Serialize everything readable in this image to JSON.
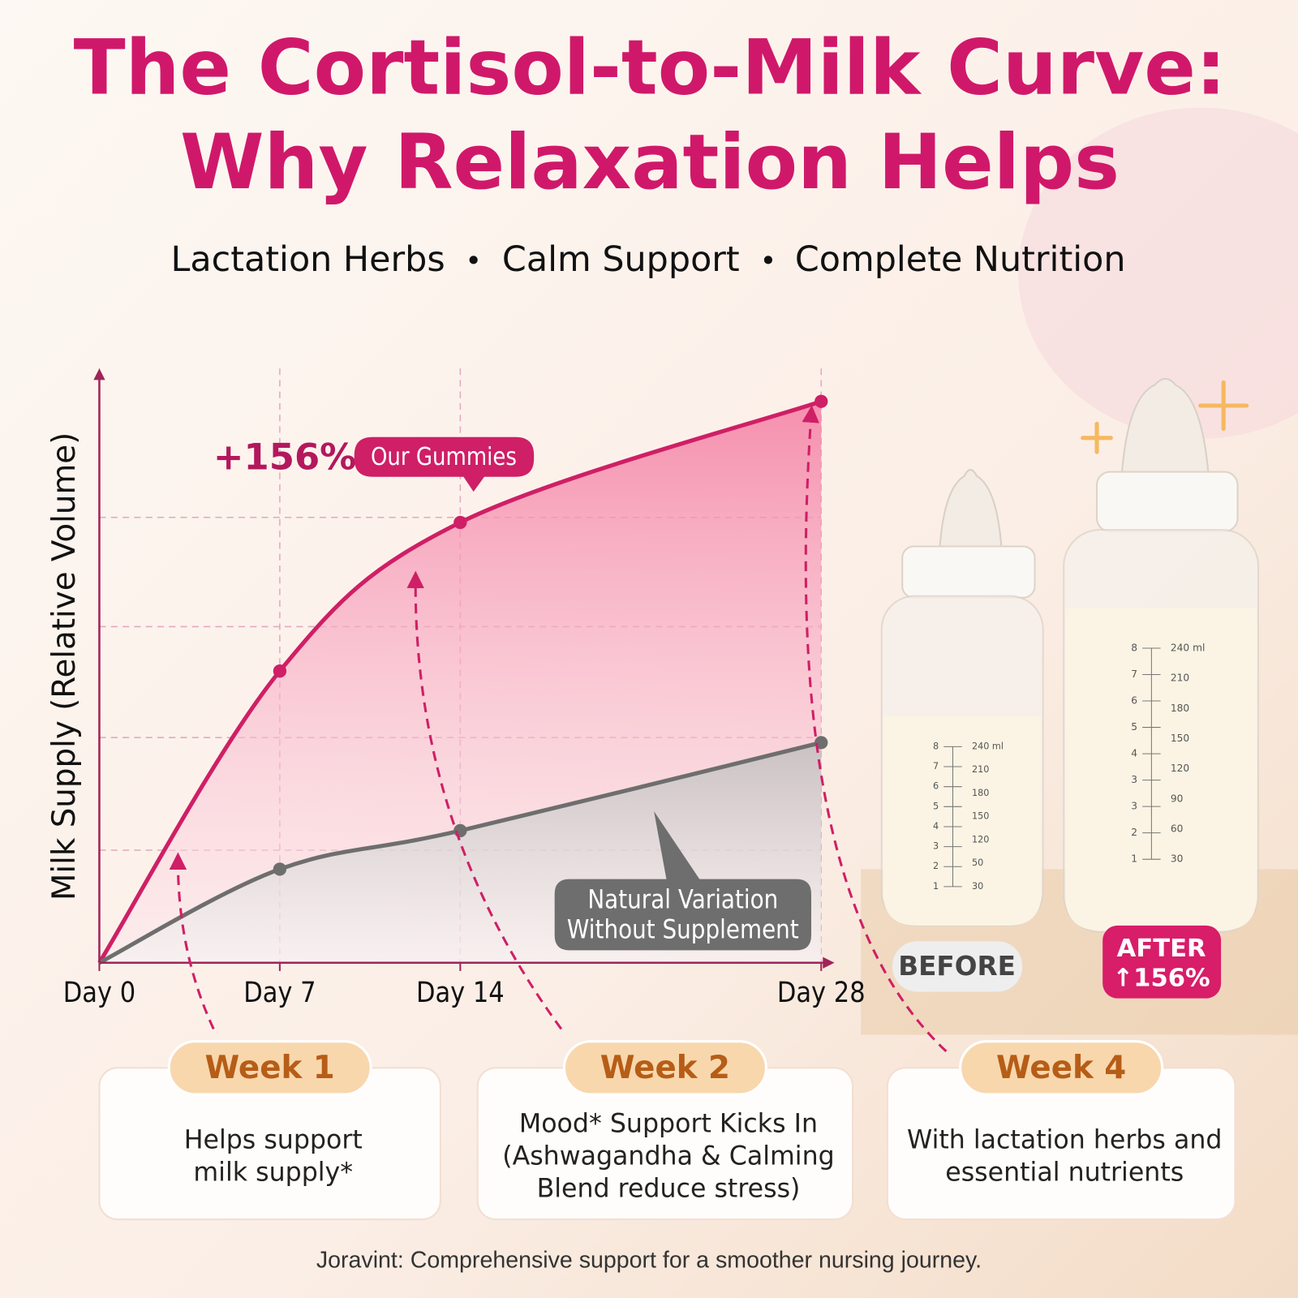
{
  "header": {
    "title_lines": [
      "The Cortisol-to-Milk Curve:",
      "Why Relaxation Helps"
    ],
    "subtitle_items": [
      "Lactation Herbs",
      "Calm Support",
      "Complete Nutrition"
    ]
  },
  "chart_data": {
    "type": "line",
    "y_label": "Milk Supply (Relative Volume)",
    "x": [
      0,
      7,
      14,
      28
    ],
    "xlim": [
      0,
      28
    ],
    "xticks": [
      {
        "value": 0,
        "label": "Day 0"
      },
      {
        "value": 7,
        "label": "Day 7"
      },
      {
        "value": 14,
        "label": "Day 14"
      },
      {
        "value": 28,
        "label": "Day 28"
      }
    ],
    "ylim": [
      0,
      5.4
    ],
    "grid": true,
    "series": [
      {
        "name": "Our Gummies",
        "color": "#cf1f66",
        "values": [
          0,
          2.65,
          4.0,
          5.1
        ]
      },
      {
        "name": "Natural Variation Without Supplement",
        "color": "#6e6e6e",
        "values": [
          0,
          0.85,
          1.2,
          2.0
        ]
      }
    ],
    "annotations": {
      "gain": "+156%"
    }
  },
  "bottles": {
    "before": {
      "label": "BEFORE",
      "ml": [
        "240 ml",
        "210",
        "180",
        "150",
        "120",
        "50",
        "30"
      ],
      "oz": [
        "8",
        "7",
        "6",
        "5",
        "4",
        "3",
        "2",
        "1"
      ]
    },
    "after": {
      "label_lines": [
        "AFTER",
        "↑156%"
      ],
      "ml": [
        "240 ml",
        "210",
        "180",
        "150",
        "120",
        "90",
        "60",
        "30"
      ],
      "oz": [
        "8",
        "7",
        "6",
        "5",
        "4",
        "3",
        "3",
        "2",
        "1"
      ]
    }
  },
  "cards": [
    {
      "week": "Week 1",
      "lines": [
        "Helps support",
        "milk supply*"
      ]
    },
    {
      "week": "Week 2",
      "lines": [
        "Mood* Support Kicks In",
        "(Ashwagandha & Calming",
        "Blend reduce stress)"
      ]
    },
    {
      "week": "Week 4",
      "lines": [
        "With lactation herbs and",
        "essential nutrients"
      ]
    }
  ],
  "footer": "Joravint: Comprehensive support for a smoother nursing journey."
}
